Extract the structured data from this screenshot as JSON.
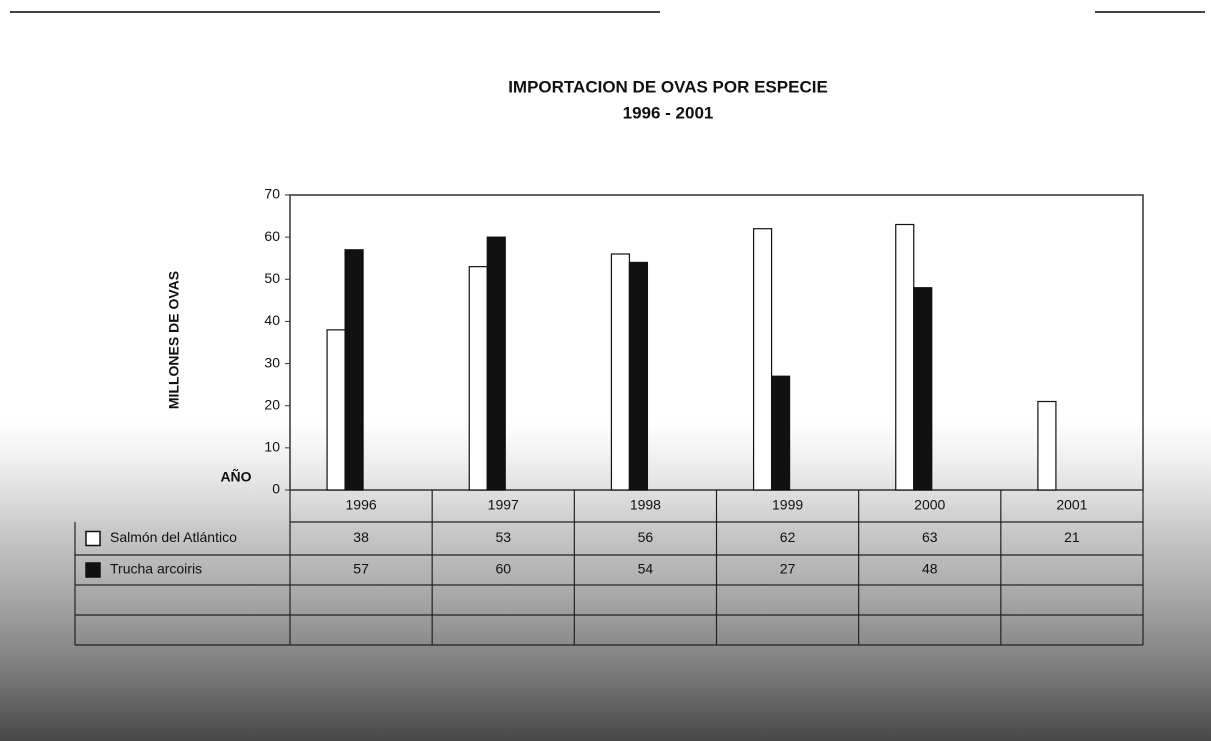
{
  "chart_data": {
    "type": "bar",
    "title": "IMPORTACION DE OVAS POR ESPECIE",
    "subtitle": "1996 - 2001",
    "y_label": "MILLONES DE OVAS",
    "table_header": "AÑO",
    "categories": [
      "1996",
      "1997",
      "1998",
      "1999",
      "2000",
      "2001"
    ],
    "series": [
      {
        "name": "Salmón del Atlántico",
        "color": "#ffffff",
        "values": [
          38,
          53,
          56,
          62,
          63,
          21
        ]
      },
      {
        "name": "Trucha arcoiris",
        "color": "#111111",
        "values": [
          57,
          60,
          54,
          27,
          48,
          null
        ]
      }
    ],
    "ylim": [
      0,
      70
    ],
    "yticks": [
      0,
      10,
      20,
      30,
      40,
      50,
      60,
      70
    ],
    "grid": false
  }
}
